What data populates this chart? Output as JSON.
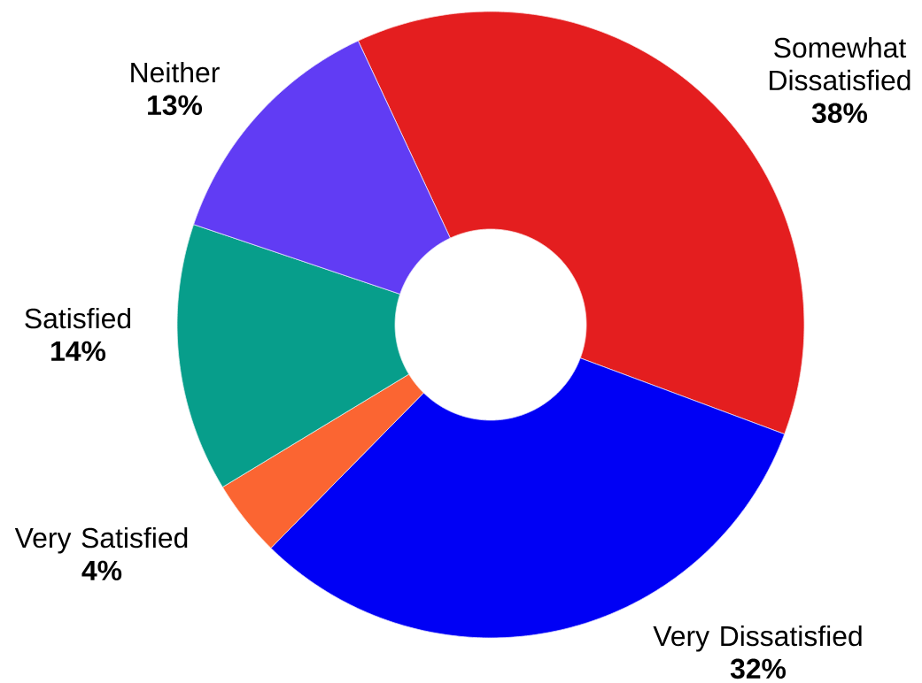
{
  "chart_data": {
    "type": "donut",
    "categories": [
      "Somewhat Dissatisfied",
      "Very Dissatisfied",
      "Very Satisfied",
      "Satisfied",
      "Neither"
    ],
    "values": [
      38,
      32,
      4,
      14,
      13
    ],
    "colors": [
      "#e41e1f",
      "#0000f5",
      "#fb6532",
      "#079e8b",
      "#613cf4"
    ],
    "value_labels": [
      "38%",
      "32%",
      "4%",
      "14%",
      "13%"
    ]
  }
}
